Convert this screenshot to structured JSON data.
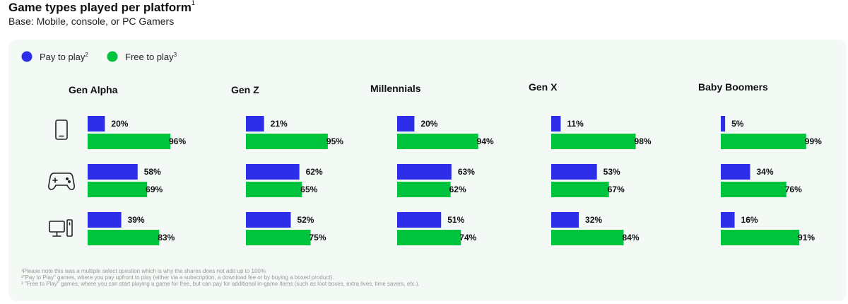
{
  "header": {
    "title": "Game types played per platform",
    "title_sup": "1",
    "subtitle": "Base: Mobile, console, or PC Gamers"
  },
  "colors": {
    "pay": "#2e2ee8",
    "free": "#00c43d",
    "panel": "#f3f9f4"
  },
  "chart_data": {
    "type": "bar",
    "orientation": "horizontal",
    "title": "Game types played per platform",
    "subtitle": "Base: Mobile, console, or PC Gamers",
    "legend": [
      {
        "name": "Pay to play",
        "sup": "2",
        "color": "#2e2ee8"
      },
      {
        "name": "Free to play",
        "sup": "3",
        "color": "#00c43d"
      }
    ],
    "legend_position": "top-left",
    "platform_icons": [
      "mobile-phone-icon",
      "gamepad-icon",
      "pc-monitor-icon"
    ],
    "unit": "%",
    "xlim": [
      0,
      100
    ],
    "groups": [
      {
        "name": "Gen Alpha",
        "pay": [
          20,
          58,
          39
        ],
        "free": [
          96,
          69,
          83
        ]
      },
      {
        "name": "Gen Z",
        "pay": [
          21,
          62,
          52
        ],
        "free": [
          95,
          65,
          75
        ]
      },
      {
        "name": "Millennials",
        "pay": [
          20,
          63,
          51
        ],
        "free": [
          94,
          62,
          74
        ]
      },
      {
        "name": "Gen X",
        "pay": [
          11,
          53,
          32
        ],
        "free": [
          98,
          67,
          84
        ]
      },
      {
        "name": "Baby Boomers",
        "pay": [
          5,
          34,
          16
        ],
        "free": [
          99,
          76,
          91
        ]
      }
    ]
  },
  "footnotes": [
    "¹Please note this was a multiple select question which is why the shares does not add up to 100%",
    "²\"Pay to Play\" games, where you pay upfront to play (either via a subscription, a download fee or by buying a boxed product).",
    "³ \"Free to Play\" games, where you can start playing a game for free, but can pay for additional in-game items (such as loot boxes, extra lives, time savers, etc.)."
  ]
}
